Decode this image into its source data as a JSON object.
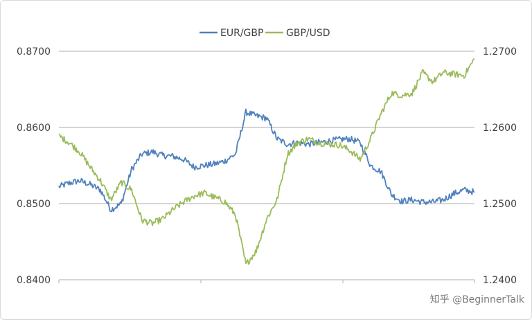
{
  "chart_data": {
    "type": "line",
    "title": "",
    "xlabel": "",
    "legend_position": "top",
    "grid": "horizontal",
    "left_axis": {
      "range": [
        0.84,
        0.87
      ],
      "ticks": [
        "0.8400",
        "0.8500",
        "0.8600",
        "0.8700"
      ]
    },
    "right_axis": {
      "range": [
        1.24,
        1.27
      ],
      "ticks": [
        "1.2400",
        "1.2500",
        "1.2600",
        "1.2700"
      ]
    },
    "x": [
      0,
      3,
      6,
      9,
      12,
      15,
      18,
      21,
      24,
      27,
      30,
      33,
      36,
      39,
      42,
      45,
      48,
      51,
      54,
      57,
      60,
      63,
      66,
      69,
      72,
      75,
      78,
      81,
      84,
      87,
      90,
      93,
      96,
      99,
      102,
      105,
      108,
      111,
      114,
      117,
      120
    ],
    "series": [
      {
        "name": "EUR/GBP",
        "axis": "left",
        "color": "#4f81bd",
        "values": [
          0.8522,
          0.8527,
          0.853,
          0.8525,
          0.8518,
          0.8492,
          0.85,
          0.8545,
          0.8565,
          0.8568,
          0.8563,
          0.8562,
          0.8558,
          0.8548,
          0.855,
          0.8552,
          0.8556,
          0.8565,
          0.862,
          0.8615,
          0.8612,
          0.8585,
          0.8578,
          0.858,
          0.8578,
          0.858,
          0.8582,
          0.8584,
          0.8585,
          0.858,
          0.855,
          0.8542,
          0.8512,
          0.8503,
          0.8505,
          0.8502,
          0.8502,
          0.8505,
          0.8513,
          0.8518,
          0.8515
        ]
      },
      {
        "name": "GBP/USD",
        "axis": "right",
        "color": "#9bbb59",
        "values": [
          1.2589,
          1.258,
          1.2568,
          1.2548,
          1.253,
          1.2505,
          1.2528,
          1.2518,
          1.2478,
          1.2474,
          1.248,
          1.2492,
          1.2502,
          1.251,
          1.2514,
          1.2508,
          1.2502,
          1.2485,
          1.242,
          1.2438,
          1.248,
          1.2505,
          1.2565,
          1.258,
          1.2585,
          1.258,
          1.2578,
          1.2577,
          1.257,
          1.2558,
          1.2585,
          1.2618,
          1.2645,
          1.2642,
          1.2645,
          1.2672,
          1.266,
          1.2672,
          1.267,
          1.2668,
          1.269
        ]
      }
    ]
  },
  "watermark": "知乎 @BeginnerTalk"
}
